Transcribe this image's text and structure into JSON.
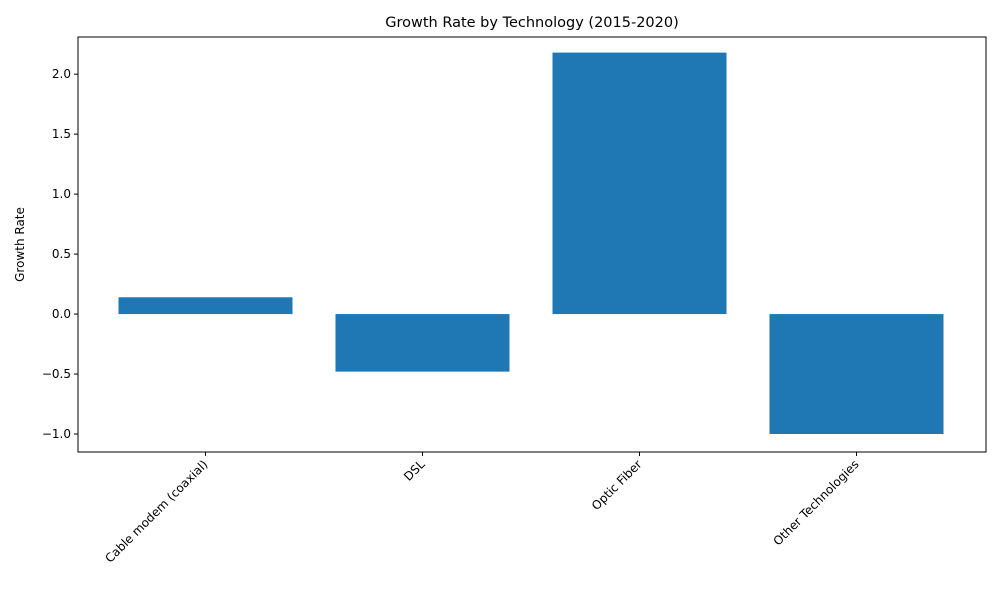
{
  "chart_data": {
    "type": "bar",
    "title": "Growth Rate by Technology (2015-2020)",
    "xlabel": "",
    "ylabel": "Growth Rate",
    "categories": [
      "Cable modem (coaxial)",
      "DSL",
      "Optic Fiber",
      "Other Technologies"
    ],
    "values": [
      0.14,
      -0.48,
      2.18,
      -1.0
    ],
    "ylim": [
      -1.15,
      2.31
    ],
    "yticks": [
      -1.0,
      -0.5,
      0.0,
      0.5,
      1.0,
      1.5,
      2.0
    ],
    "ytick_labels": [
      "−1.0",
      "−0.5",
      "0.0",
      "0.5",
      "1.0",
      "1.5",
      "2.0"
    ],
    "bar_color": "#1f77b4",
    "grid": false
  }
}
